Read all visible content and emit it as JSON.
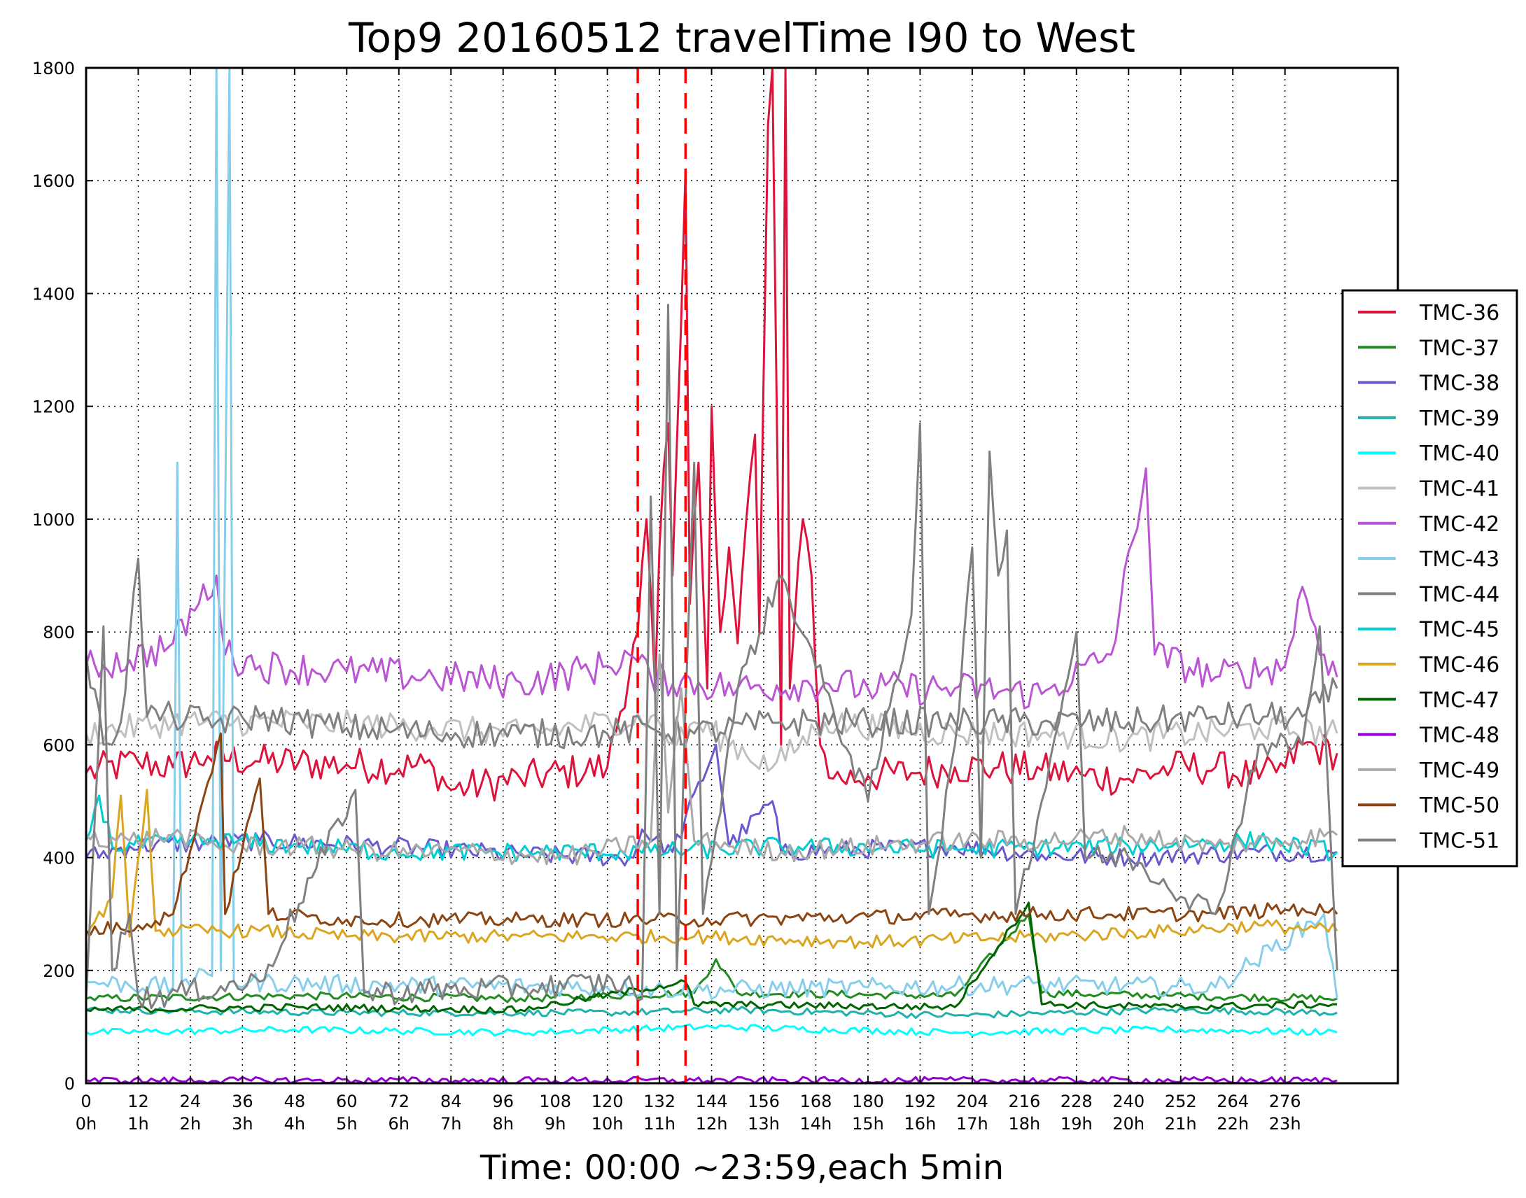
{
  "chart_data": {
    "type": "line",
    "title": "Top9 20160512 travelTime I90 to West",
    "xlabel": "Time: 00:00 ~23:59,each 5min",
    "ylabel": "",
    "xlim": [
      0,
      302
    ],
    "ylim": [
      0,
      1800
    ],
    "grid": true,
    "grid_style": "dotted",
    "legend_position": "right",
    "x_ticks": [
      0,
      12,
      24,
      36,
      48,
      60,
      72,
      84,
      96,
      108,
      120,
      132,
      144,
      156,
      168,
      180,
      192,
      204,
      216,
      228,
      240,
      252,
      264,
      276
    ],
    "x_tick_labels_top": [
      "0",
      "12",
      "24",
      "36",
      "48",
      "60",
      "72",
      "84",
      "96",
      "108",
      "120",
      "132",
      "144",
      "156",
      "168",
      "180",
      "192",
      "204",
      "216",
      "228",
      "240",
      "252",
      "264",
      "276"
    ],
    "x_tick_labels_bottom": [
      "0h",
      "1h",
      "2h",
      "3h",
      "4h",
      "5h",
      "6h",
      "7h",
      "8h",
      "9h",
      "10h",
      "11h",
      "12h",
      "13h",
      "14h",
      "15h",
      "16h",
      "17h",
      "18h",
      "19h",
      "20h",
      "21h",
      "22h",
      "23h"
    ],
    "y_ticks": [
      0,
      200,
      400,
      600,
      800,
      1000,
      1200,
      1400,
      1600,
      1800
    ],
    "y_tick_labels": [
      "0",
      "200",
      "400",
      "600",
      "800",
      "1000",
      "1200",
      "1400",
      "1600",
      "1800"
    ],
    "vlines": [
      {
        "x": 127,
        "color": "#ff0000",
        "style": "dashed"
      },
      {
        "x": 138,
        "color": "#ff0000",
        "style": "dashed"
      }
    ],
    "series": [
      {
        "name": "TMC-36",
        "color": "#dc143c",
        "keypoints": [
          [
            0,
            550
          ],
          [
            12,
            570
          ],
          [
            20,
            560
          ],
          [
            28,
            580
          ],
          [
            40,
            570
          ],
          [
            60,
            565
          ],
          [
            80,
            560
          ],
          [
            84,
            520
          ],
          [
            100,
            540
          ],
          [
            120,
            560
          ],
          [
            127,
            800
          ],
          [
            129,
            1000
          ],
          [
            131,
            700
          ],
          [
            132,
            950
          ],
          [
            134,
            1170
          ],
          [
            135,
            900
          ],
          [
            137,
            1350
          ],
          [
            138,
            1620
          ],
          [
            139,
            850
          ],
          [
            141,
            1100
          ],
          [
            143,
            700
          ],
          [
            144,
            1200
          ],
          [
            146,
            800
          ],
          [
            148,
            950
          ],
          [
            150,
            780
          ],
          [
            152,
            1000
          ],
          [
            154,
            1150
          ],
          [
            155,
            800
          ],
          [
            157,
            1700
          ],
          [
            158,
            1800
          ],
          [
            160,
            600
          ],
          [
            161,
            1800
          ],
          [
            162,
            700
          ],
          [
            165,
            1000
          ],
          [
            167,
            900
          ],
          [
            169,
            600
          ],
          [
            172,
            540
          ],
          [
            180,
            545
          ],
          [
            190,
            550
          ],
          [
            200,
            560
          ],
          [
            210,
            560
          ],
          [
            220,
            555
          ],
          [
            230,
            545
          ],
          [
            240,
            540
          ],
          [
            250,
            560
          ],
          [
            260,
            560
          ],
          [
            270,
            540
          ],
          [
            276,
            560
          ],
          [
            280,
            600
          ],
          [
            288,
            585
          ]
        ]
      },
      {
        "name": "TMC-37",
        "color": "#228b22",
        "keypoints": [
          [
            0,
            150
          ],
          [
            50,
            155
          ],
          [
            100,
            150
          ],
          [
            140,
            160
          ],
          [
            145,
            220
          ],
          [
            150,
            160
          ],
          [
            200,
            155
          ],
          [
            217,
            300
          ],
          [
            220,
            160
          ],
          [
            250,
            155
          ],
          [
            288,
            150
          ]
        ]
      },
      {
        "name": "TMC-38",
        "color": "#6a5acd",
        "keypoints": [
          [
            0,
            400
          ],
          [
            10,
            420
          ],
          [
            40,
            430
          ],
          [
            70,
            420
          ],
          [
            100,
            405
          ],
          [
            126,
            400
          ],
          [
            128,
            450
          ],
          [
            135,
            410
          ],
          [
            145,
            600
          ],
          [
            148,
            420
          ],
          [
            158,
            500
          ],
          [
            160,
            410
          ],
          [
            200,
            420
          ],
          [
            220,
            405
          ],
          [
            240,
            400
          ],
          [
            270,
            410
          ],
          [
            288,
            410
          ]
        ]
      },
      {
        "name": "TMC-39",
        "color": "#20b2aa",
        "keypoints": [
          [
            0,
            130
          ],
          [
            60,
            125
          ],
          [
            120,
            125
          ],
          [
            150,
            130
          ],
          [
            200,
            120
          ],
          [
            250,
            130
          ],
          [
            288,
            125
          ]
        ]
      },
      {
        "name": "TMC-40",
        "color": "#00ffff",
        "keypoints": [
          [
            0,
            90
          ],
          [
            48,
            95
          ],
          [
            100,
            90
          ],
          [
            144,
            100
          ],
          [
            200,
            90
          ],
          [
            250,
            95
          ],
          [
            288,
            90
          ]
        ]
      },
      {
        "name": "TMC-41",
        "color": "#c0c0c0",
        "keypoints": [
          [
            0,
            620
          ],
          [
            20,
            640
          ],
          [
            50,
            640
          ],
          [
            80,
            630
          ],
          [
            100,
            620
          ],
          [
            130,
            650
          ],
          [
            136,
            600
          ],
          [
            140,
            640
          ],
          [
            158,
            560
          ],
          [
            170,
            640
          ],
          [
            200,
            620
          ],
          [
            220,
            620
          ],
          [
            240,
            610
          ],
          [
            270,
            630
          ],
          [
            288,
            620
          ]
        ]
      },
      {
        "name": "TMC-42",
        "color": "#ba55d3",
        "keypoints": [
          [
            0,
            740
          ],
          [
            10,
            750
          ],
          [
            20,
            780
          ],
          [
            30,
            900
          ],
          [
            32,
            760
          ],
          [
            40,
            740
          ],
          [
            60,
            730
          ],
          [
            80,
            720
          ],
          [
            100,
            710
          ],
          [
            120,
            740
          ],
          [
            125,
            760
          ],
          [
            130,
            720
          ],
          [
            150,
            700
          ],
          [
            170,
            710
          ],
          [
            180,
            700
          ],
          [
            200,
            700
          ],
          [
            220,
            690
          ],
          [
            236,
            760
          ],
          [
            244,
            1090
          ],
          [
            246,
            760
          ],
          [
            260,
            720
          ],
          [
            276,
            740
          ],
          [
            280,
            880
          ],
          [
            285,
            760
          ],
          [
            288,
            720
          ]
        ]
      },
      {
        "name": "TMC-43",
        "color": "#87ceeb",
        "keypoints": [
          [
            0,
            180
          ],
          [
            20,
            170
          ],
          [
            21,
            1100
          ],
          [
            22,
            180
          ],
          [
            29,
            190
          ],
          [
            30,
            1800
          ],
          [
            31,
            200
          ],
          [
            33,
            1800
          ],
          [
            34,
            180
          ],
          [
            60,
            175
          ],
          [
            120,
            170
          ],
          [
            140,
            165
          ],
          [
            180,
            170
          ],
          [
            220,
            175
          ],
          [
            260,
            170
          ],
          [
            285,
            300
          ],
          [
            288,
            150
          ]
        ]
      },
      {
        "name": "TMC-44",
        "color": "#808080",
        "keypoints": [
          [
            0,
            760
          ],
          [
            4,
            600
          ],
          [
            8,
            640
          ],
          [
            12,
            930
          ],
          [
            14,
            650
          ],
          [
            20,
            650
          ],
          [
            30,
            640
          ],
          [
            40,
            650
          ],
          [
            50,
            640
          ],
          [
            60,
            630
          ],
          [
            80,
            620
          ],
          [
            100,
            620
          ],
          [
            120,
            620
          ],
          [
            130,
            630
          ],
          [
            140,
            620
          ],
          [
            160,
            640
          ],
          [
            180,
            640
          ],
          [
            200,
            640
          ],
          [
            220,
            640
          ],
          [
            240,
            640
          ],
          [
            260,
            650
          ],
          [
            280,
            650
          ],
          [
            288,
            700
          ]
        ]
      },
      {
        "name": "TMC-45",
        "color": "#00ced1",
        "keypoints": [
          [
            0,
            430
          ],
          [
            3,
            510
          ],
          [
            6,
            420
          ],
          [
            30,
            430
          ],
          [
            50,
            420
          ],
          [
            70,
            410
          ],
          [
            100,
            410
          ],
          [
            130,
            410
          ],
          [
            160,
            420
          ],
          [
            200,
            415
          ],
          [
            240,
            420
          ],
          [
            270,
            430
          ],
          [
            288,
            410
          ]
        ]
      },
      {
        "name": "TMC-46",
        "color": "#daa520",
        "keypoints": [
          [
            0,
            260
          ],
          [
            6,
            330
          ],
          [
            8,
            510
          ],
          [
            10,
            260
          ],
          [
            14,
            520
          ],
          [
            16,
            270
          ],
          [
            40,
            270
          ],
          [
            60,
            260
          ],
          [
            100,
            260
          ],
          [
            140,
            260
          ],
          [
            180,
            250
          ],
          [
            220,
            260
          ],
          [
            250,
            270
          ],
          [
            270,
            280
          ],
          [
            288,
            270
          ]
        ]
      },
      {
        "name": "TMC-47",
        "color": "#006400",
        "keypoints": [
          [
            0,
            130
          ],
          [
            50,
            135
          ],
          [
            100,
            130
          ],
          [
            138,
            180
          ],
          [
            140,
            140
          ],
          [
            200,
            135
          ],
          [
            217,
            320
          ],
          [
            220,
            140
          ],
          [
            250,
            135
          ],
          [
            288,
            140
          ]
        ]
      },
      {
        "name": "TMC-48",
        "color": "#9400d3",
        "keypoints": [
          [
            0,
            5
          ],
          [
            288,
            5
          ]
        ]
      },
      {
        "name": "TMC-49",
        "color": "#a9a9a9",
        "keypoints": [
          [
            0,
            440
          ],
          [
            10,
            430
          ],
          [
            20,
            440
          ],
          [
            30,
            420
          ],
          [
            50,
            420
          ],
          [
            70,
            410
          ],
          [
            90,
            410
          ],
          [
            110,
            400
          ],
          [
            130,
            430
          ],
          [
            132,
            760
          ],
          [
            134,
            480
          ],
          [
            137,
            700
          ],
          [
            140,
            430
          ],
          [
            160,
            410
          ],
          [
            200,
            430
          ],
          [
            220,
            430
          ],
          [
            240,
            440
          ],
          [
            260,
            420
          ],
          [
            288,
            440
          ]
        ]
      },
      {
        "name": "TMC-50",
        "color": "#8b4513",
        "keypoints": [
          [
            0,
            270
          ],
          [
            12,
            280
          ],
          [
            20,
            300
          ],
          [
            31,
            620
          ],
          [
            32,
            300
          ],
          [
            40,
            540
          ],
          [
            42,
            300
          ],
          [
            60,
            290
          ],
          [
            100,
            290
          ],
          [
            140,
            290
          ],
          [
            180,
            295
          ],
          [
            220,
            300
          ],
          [
            260,
            300
          ],
          [
            280,
            310
          ],
          [
            288,
            300
          ]
        ]
      },
      {
        "name": "TMC-51",
        "color": "#808080",
        "keypoints": [
          [
            0,
            150
          ],
          [
            4,
            810
          ],
          [
            6,
            200
          ],
          [
            10,
            300
          ],
          [
            12,
            150
          ],
          [
            40,
            180
          ],
          [
            62,
            520
          ],
          [
            64,
            160
          ],
          [
            100,
            170
          ],
          [
            124,
            180
          ],
          [
            128,
            150
          ],
          [
            130,
            1040
          ],
          [
            132,
            300
          ],
          [
            134,
            1380
          ],
          [
            136,
            200
          ],
          [
            140,
            1100
          ],
          [
            142,
            300
          ],
          [
            150,
            700
          ],
          [
            160,
            900
          ],
          [
            170,
            700
          ],
          [
            180,
            500
          ],
          [
            190,
            830
          ],
          [
            192,
            1170
          ],
          [
            194,
            300
          ],
          [
            200,
            600
          ],
          [
            204,
            950
          ],
          [
            206,
            400
          ],
          [
            208,
            1120
          ],
          [
            210,
            900
          ],
          [
            212,
            980
          ],
          [
            214,
            300
          ],
          [
            220,
            500
          ],
          [
            228,
            800
          ],
          [
            230,
            400
          ],
          [
            240,
            400
          ],
          [
            260,
            300
          ],
          [
            270,
            600
          ],
          [
            280,
            600
          ],
          [
            284,
            810
          ],
          [
            288,
            200
          ]
        ]
      }
    ]
  }
}
